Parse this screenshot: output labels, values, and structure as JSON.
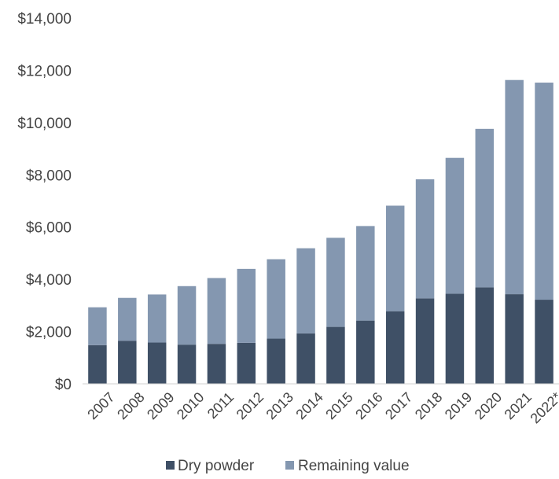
{
  "chart_data": {
    "type": "bar",
    "stacked": true,
    "categories": [
      "2007",
      "2008",
      "2009",
      "2010",
      "2011",
      "2012",
      "2013",
      "2014",
      "2015",
      "2016",
      "2017",
      "2018",
      "2019",
      "2020",
      "2021",
      "2022*"
    ],
    "series": [
      {
        "name": "Dry powder",
        "color": "#3f5066",
        "values": [
          1480,
          1650,
          1580,
          1500,
          1530,
          1570,
          1730,
          1930,
          2180,
          2420,
          2780,
          3270,
          3450,
          3690,
          3430,
          3220
        ]
      },
      {
        "name": "Remaining value",
        "color": "#8497b0",
        "values": [
          1450,
          1640,
          1840,
          2240,
          2520,
          2830,
          3040,
          3260,
          3410,
          3620,
          4040,
          4560,
          5200,
          6070,
          8200,
          8310
        ]
      }
    ],
    "y_ticks": [
      "$0",
      "$2,000",
      "$4,000",
      "$6,000",
      "$8,000",
      "$10,000",
      "$12,000",
      "$14,000"
    ],
    "ylim": [
      0,
      14000
    ],
    "grid": false,
    "legend_position": "bottom-center",
    "title": "",
    "xlabel": "",
    "ylabel": ""
  }
}
